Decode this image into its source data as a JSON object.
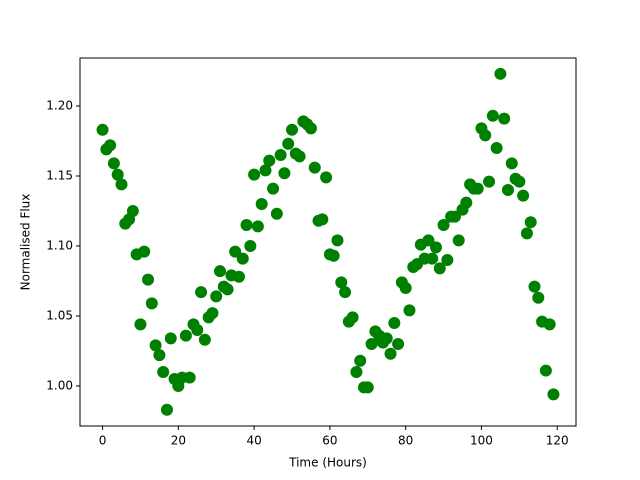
{
  "chart_data": {
    "type": "scatter",
    "xlabel": "Time (Hours)",
    "ylabel": "Normalised Flux",
    "color": "#008000",
    "x": [
      0,
      1,
      2,
      3,
      4,
      5,
      6,
      7,
      8,
      9,
      10,
      11,
      12,
      13,
      14,
      15,
      16,
      17,
      18,
      19,
      20,
      21,
      22,
      23,
      24,
      25,
      26,
      27,
      28,
      29,
      30,
      31,
      32,
      33,
      34,
      35,
      36,
      37,
      38,
      39,
      40,
      41,
      42,
      43,
      44,
      45,
      46,
      47,
      48,
      49,
      50,
      51,
      52,
      53,
      54,
      55,
      56,
      57,
      58,
      59,
      60,
      61,
      62,
      63,
      64,
      65,
      66,
      67,
      68,
      69,
      70,
      71,
      72,
      73,
      74,
      75,
      76,
      77,
      78,
      79,
      80,
      81,
      82,
      83,
      84,
      85,
      86,
      87,
      88,
      89,
      90,
      91,
      92,
      93,
      94,
      95,
      96,
      97,
      98,
      99,
      100,
      101,
      102,
      103,
      104,
      105,
      106,
      107,
      108,
      109,
      110,
      111,
      112,
      113,
      114,
      115,
      116,
      117,
      118,
      119
    ],
    "values": [
      1.183,
      1.169,
      1.172,
      1.159,
      1.151,
      1.144,
      1.116,
      1.119,
      1.125,
      1.094,
      1.044,
      1.096,
      1.076,
      1.059,
      1.029,
      1.022,
      1.01,
      0.983,
      1.034,
      1.005,
      1.0,
      1.006,
      1.036,
      1.006,
      1.044,
      1.04,
      1.067,
      1.033,
      1.049,
      1.052,
      1.064,
      1.082,
      1.071,
      1.069,
      1.079,
      1.096,
      1.078,
      1.091,
      1.115,
      1.1,
      1.151,
      1.114,
      1.13,
      1.154,
      1.161,
      1.141,
      1.123,
      1.165,
      1.152,
      1.173,
      1.183,
      1.166,
      1.164,
      1.189,
      1.187,
      1.184,
      1.156,
      1.118,
      1.119,
      1.149,
      1.094,
      1.093,
      1.104,
      1.074,
      1.067,
      1.046,
      1.049,
      1.01,
      1.018,
      0.999,
      0.999,
      1.03,
      1.039,
      1.036,
      1.031,
      1.034,
      1.023,
      1.045,
      1.03,
      1.074,
      1.07,
      1.054,
      1.085,
      1.087,
      1.101,
      1.091,
      1.104,
      1.091,
      1.099,
      1.084,
      1.115,
      1.09,
      1.121,
      1.121,
      1.104,
      1.126,
      1.131,
      1.144,
      1.141,
      1.141,
      1.184,
      1.179,
      1.146,
      1.193,
      1.17,
      1.223,
      1.191,
      1.14,
      1.159,
      1.148,
      1.146,
      1.136,
      1.109,
      1.117,
      1.071,
      1.063,
      1.046,
      1.011,
      1.044,
      0.994
    ],
    "xlim": [
      -5.95,
      124.95
    ],
    "xticks": [
      0,
      20,
      40,
      60,
      80,
      100,
      120
    ],
    "ylim": [
      0.9714,
      1.2343
    ],
    "yticks": [
      {
        "value": 1,
        "label": "1.00"
      },
      1.05,
      {
        "value": 1.1,
        "label": "1.10"
      },
      1.15,
      {
        "value": 1.2,
        "label": "1.20"
      }
    ]
  }
}
